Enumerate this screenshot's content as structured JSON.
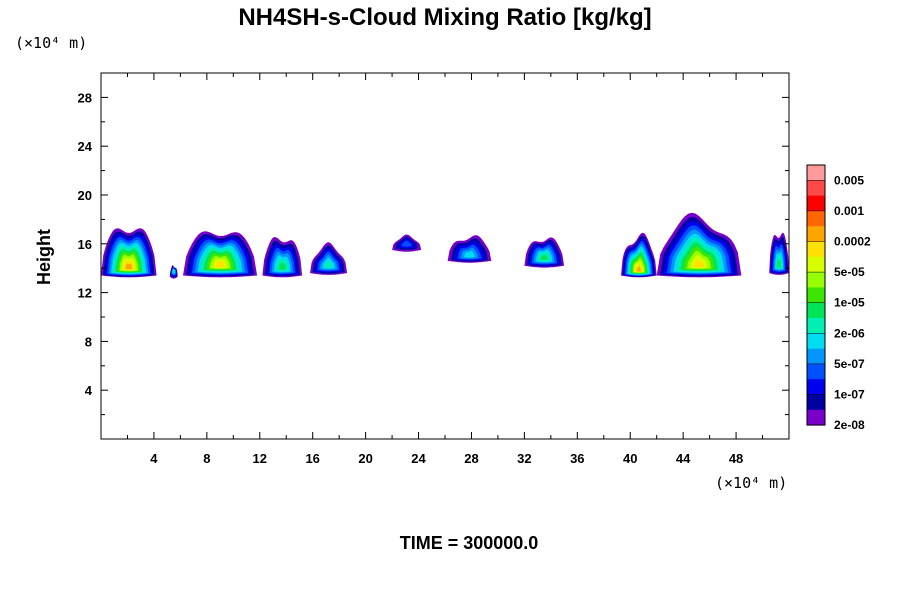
{
  "chart_data": {
    "type": "heatmap",
    "title": "NH4SH-s-Cloud Mixing Ratio [kg/kg]",
    "xlabel": "",
    "ylabel": "Height",
    "x_scale_label": "(×10⁴ m)",
    "y_scale_label": "(×10⁴ m)",
    "footer": "TIME = 300000.0",
    "xlim": [
      0,
      52
    ],
    "ylim": [
      0,
      30
    ],
    "xticks": [
      4,
      8,
      12,
      16,
      20,
      24,
      28,
      32,
      36,
      40,
      44,
      48
    ],
    "yticks": [
      4,
      8,
      12,
      16,
      20,
      24,
      28
    ],
    "colorbar": {
      "labels": [
        "0.005",
        "0.001",
        "0.0002",
        "5e-05",
        "1e-05",
        "2e-06",
        "5e-07",
        "1e-07",
        "2e-08"
      ],
      "colors": [
        "#ff9b9b",
        "#ff4a4a",
        "#ff0000",
        "#ff6600",
        "#ffa500",
        "#ffe100",
        "#d8ff00",
        "#96ff00",
        "#3ce600",
        "#00e45a",
        "#00f0b4",
        "#00dcf0",
        "#0096ff",
        "#0050ff",
        "#0000f0",
        "#0000a0",
        "#7800c8"
      ]
    },
    "clouds": [
      {
        "x": [
          0,
          4.2
        ],
        "base": 13.4,
        "top": 17.5,
        "peak": 14.0,
        "max_level": 13
      },
      {
        "x": [
          5.2,
          5.8
        ],
        "base": 13.3,
        "top": 14.2,
        "peak": 13.8,
        "max_level": 7
      },
      {
        "x": [
          6.2,
          11.8
        ],
        "base": 13.4,
        "top": 17.2,
        "peak": 14.2,
        "max_level": 12
      },
      {
        "x": [
          12.2,
          15.2
        ],
        "base": 13.4,
        "top": 16.6,
        "peak": 14.0,
        "max_level": 8
      },
      {
        "x": [
          15.8,
          18.6
        ],
        "base": 13.6,
        "top": 15.8,
        "peak": 14.2,
        "max_level": 7
      },
      {
        "x": [
          22.0,
          24.2
        ],
        "base": 15.5,
        "top": 16.6,
        "peak": 16.0,
        "max_level": 4
      },
      {
        "x": [
          26.2,
          29.5
        ],
        "base": 14.6,
        "top": 16.6,
        "peak": 15.0,
        "max_level": 6
      },
      {
        "x": [
          32.0,
          35.0
        ],
        "base": 14.2,
        "top": 16.5,
        "peak": 14.8,
        "max_level": 8
      },
      {
        "x": [
          39.3,
          42.0
        ],
        "base": 13.4,
        "top": 16.6,
        "peak": 13.8,
        "max_level": 13
      },
      {
        "x": [
          42.0,
          48.4
        ],
        "base": 13.4,
        "top": 18.0,
        "peak": 14.2,
        "max_level": 12
      },
      {
        "x": [
          50.5,
          52.0
        ],
        "base": 13.6,
        "top": 17.0,
        "peak": 14.2,
        "max_level": 8
      }
    ]
  }
}
